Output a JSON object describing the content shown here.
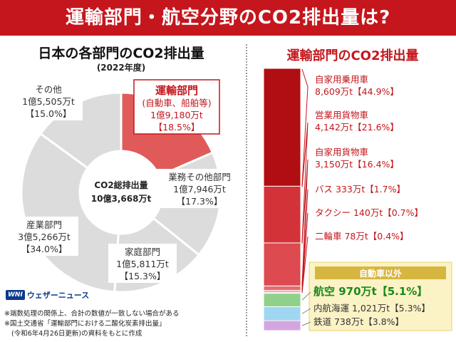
{
  "header": {
    "title": "運輸部門・航空分野のCO2排出量は?"
  },
  "left_title": "日本の各部門のCO2排出量",
  "left_subtitle": "(2022年度)",
  "right_title": "運輸部門のCO2排出量",
  "center_label": {
    "line1": "CO2総排出量",
    "line2": "10億3,668万t"
  },
  "notes": [
    "※端数処理の関係上、合計の数値が一致しない場合がある",
    "※国土交通省「運輸部門における二酸化炭素排出量」",
    "(令和6年4月26日更新)の資料をもとに作成"
  ],
  "logo": {
    "mark": "WNI",
    "text": "ウェザーニュース"
  },
  "colors": {
    "brand_red": "#c4161c",
    "donut_gray": "#dcdcdc",
    "highlight": "#e05a5a"
  },
  "chart_data": [
    {
      "type": "pie",
      "title": "日本の各部門のCO2排出量",
      "subtitle": "(2022年度)",
      "slices": [
        {
          "label": "運輸部門",
          "sublabel": "(自動車、船舶等)",
          "amount": "1億9,180万t",
          "pct_text": "【18.5%】",
          "value": 18.5,
          "color": "#e05a5a"
        },
        {
          "label": "業務その他部門",
          "amount": "1億7,946万t",
          "pct_text": "【17.3%】",
          "value": 17.3,
          "color": "#dcdcdc"
        },
        {
          "label": "家庭部門",
          "amount": "1億5,811万t",
          "pct_text": "【15.3%】",
          "value": 15.3,
          "color": "#dcdcdc"
        },
        {
          "label": "産業部門",
          "amount": "3億5,266万t",
          "pct_text": "【34.0%】",
          "value": 34.0,
          "color": "#dcdcdc"
        },
        {
          "label": "その他",
          "amount": "1億5,505万t",
          "pct_text": "【15.0%】",
          "value": 15.0,
          "color": "#dcdcdc"
        }
      ]
    },
    {
      "type": "bar",
      "title": "運輸部門のCO2排出量",
      "segments": [
        {
          "label": "自家用乗用車",
          "amount": "8,609万t",
          "pct_text": "【44.9%】",
          "value": 44.9,
          "color": "#b00e12"
        },
        {
          "label": "営業用貨物車",
          "amount": "4,142万t",
          "pct_text": "【21.6%】",
          "value": 21.6,
          "color": "#d33338"
        },
        {
          "label": "自家用貨物車",
          "amount": "3,150万t",
          "pct_text": "【16.4%】",
          "value": 16.4,
          "color": "#dd4a4f"
        },
        {
          "label": "バス",
          "amount": "333万t",
          "pct_text": "【1.7%】",
          "value": 1.7,
          "color": "#e66a6e"
        },
        {
          "label": "タクシー",
          "amount": "140万t",
          "pct_text": "【0.7%】",
          "value": 0.7,
          "color": "#f08c8f"
        },
        {
          "label": "二輪車",
          "amount": "78万t",
          "pct_text": "【0.4%】",
          "value": 0.4,
          "color": "#f5aaad"
        },
        {
          "label": "航空",
          "amount": "970万t",
          "pct_text": "【5.1%】",
          "value": 5.1,
          "color": "#8fd18a"
        },
        {
          "label": "内航海運",
          "amount": "1,021万t",
          "pct_text": "【5.3%】",
          "value": 5.3,
          "color": "#9fd6f2"
        },
        {
          "label": "鉄道",
          "amount": "738万t",
          "pct_text": "【3.8%】",
          "value": 3.8,
          "color": "#d4a6e0"
        }
      ],
      "group_label": "自動車以外"
    }
  ]
}
